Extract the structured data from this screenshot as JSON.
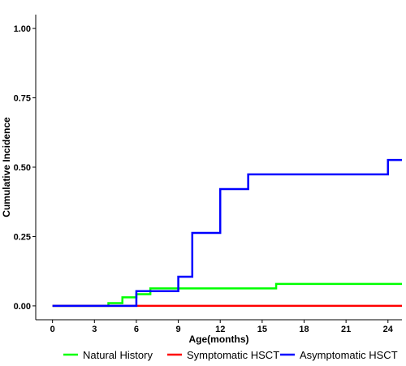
{
  "chart_data": {
    "type": "line",
    "step": true,
    "title": "",
    "xlabel": "Age(months)",
    "ylabel": "Cumulative Incidence",
    "xlim": [
      -1.2,
      25
    ],
    "ylim": [
      -0.05,
      1.05
    ],
    "xticks": [
      0,
      3,
      6,
      9,
      12,
      15,
      18,
      21,
      24
    ],
    "xtick_labels": [
      "0",
      "3",
      "6",
      "9",
      "12",
      "15",
      "18",
      "21",
      "24"
    ],
    "yticks": [
      0,
      0.25,
      0.5,
      0.75,
      1.0
    ],
    "ytick_labels": [
      "0.00",
      "0.25",
      "0.50",
      "0.75",
      "1.00"
    ],
    "grid": false,
    "legend_position": "bottom",
    "series": [
      {
        "name": "Natural History",
        "color": "#00ff00",
        "x": [
          0,
          4,
          5,
          6,
          7,
          16,
          25
        ],
        "y": [
          0,
          0.01,
          0.031,
          0.042,
          0.063,
          0.079,
          0.079
        ]
      },
      {
        "name": "Symptomatic HSCT",
        "color": "#ff0000",
        "x": [
          0,
          25
        ],
        "y": [
          0,
          0
        ]
      },
      {
        "name": "Asymptomatic HSCT",
        "color": "#0000ff",
        "x": [
          0,
          6,
          9,
          10,
          12,
          14,
          24,
          25
        ],
        "y": [
          0,
          0.053,
          0.105,
          0.263,
          0.421,
          0.474,
          0.526,
          0.526
        ]
      }
    ]
  }
}
